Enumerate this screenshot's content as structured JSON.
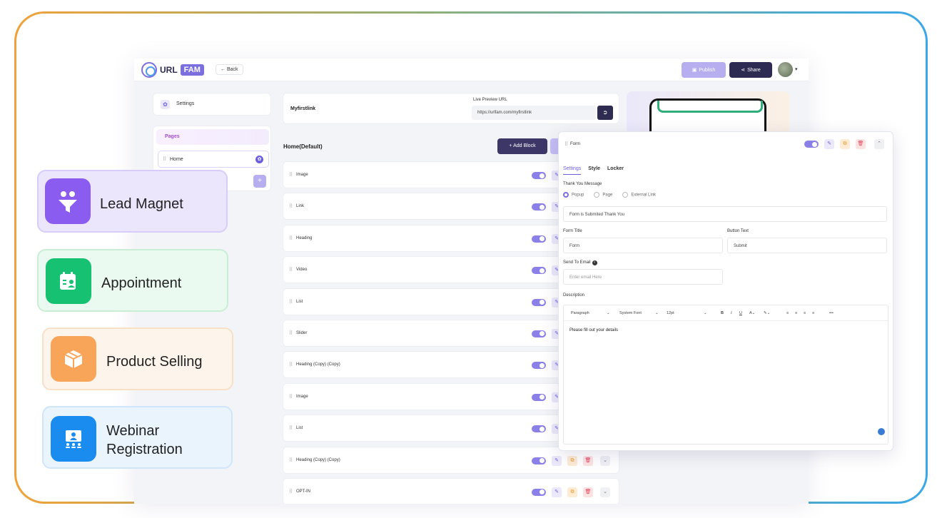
{
  "topbar": {
    "logo_text": "URL",
    "logo_badge": "FAM",
    "back_label": "Back",
    "publish_label": "Publish",
    "share_label": "Share"
  },
  "sidebar": {
    "settings_label": "Settings",
    "pages_header": "Pages",
    "pages": [
      {
        "name": "Home"
      }
    ]
  },
  "link": {
    "name": "Myfirstlink",
    "url_label": "Live Preview URL",
    "url_value": "https://urlfam.com/myfirstlink"
  },
  "page": {
    "title": "Home(Default)",
    "add_block_label": "Add Block"
  },
  "blocks": [
    {
      "name": "Image"
    },
    {
      "name": "Link"
    },
    {
      "name": "Heading"
    },
    {
      "name": "Video"
    },
    {
      "name": "List"
    },
    {
      "name": "Slider"
    },
    {
      "name": "Heading (Copy) (Copy)"
    },
    {
      "name": "Image"
    },
    {
      "name": "List"
    },
    {
      "name": "Heading (Copy) (Copy)"
    },
    {
      "name": "OPT-IN"
    }
  ],
  "form_panel": {
    "title": "Form",
    "tabs": [
      "Settings",
      "Style",
      "Locker"
    ],
    "active_tab": "Settings",
    "thank_you_label": "Thank You Message",
    "radio_options": [
      "Popup",
      "Page",
      "External Link"
    ],
    "radio_selected": "Popup",
    "thank_you_value": "Form is Submited Thank You",
    "form_title_label": "Form Title",
    "form_title_value": "Form",
    "button_text_label": "Button Text",
    "button_text_value": "Submit",
    "send_to_email_label": "Send To Email",
    "email_placeholder": "Enter email Here",
    "description_label": "Description",
    "toolbar": {
      "paragraph": "Paragraph",
      "font": "System Font",
      "size": "12pt"
    },
    "description_value": "Please fill out your details"
  },
  "features": [
    {
      "label": "Lead Magnet",
      "color": "#8a5cf0"
    },
    {
      "label": "Appointment",
      "color": "#16c172"
    },
    {
      "label": "Product Selling",
      "color": "#f8a55a"
    },
    {
      "label_line1": "Webinar",
      "label_line2": "Registration",
      "color": "#1a8cf0"
    }
  ],
  "colors": {
    "accent": "#7b6fe0",
    "dark": "#2e2b52"
  }
}
